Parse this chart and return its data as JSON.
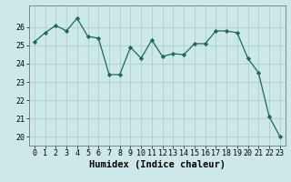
{
  "x": [
    0,
    1,
    2,
    3,
    4,
    5,
    6,
    7,
    8,
    9,
    10,
    11,
    12,
    13,
    14,
    15,
    16,
    17,
    18,
    19,
    20,
    21,
    22,
    23
  ],
  "y": [
    25.2,
    25.7,
    26.1,
    25.8,
    26.5,
    25.5,
    25.4,
    23.4,
    23.4,
    24.9,
    24.3,
    25.3,
    24.4,
    24.55,
    24.5,
    25.1,
    25.1,
    25.8,
    25.8,
    25.7,
    24.3,
    23.5,
    21.1,
    20.0
  ],
  "xlabel": "Humidex (Indice chaleur)",
  "xlim": [
    -0.5,
    23.5
  ],
  "ylim": [
    19.5,
    27.2
  ],
  "yticks": [
    20,
    21,
    22,
    23,
    24,
    25,
    26
  ],
  "xticks": [
    0,
    1,
    2,
    3,
    4,
    5,
    6,
    7,
    8,
    9,
    10,
    11,
    12,
    13,
    14,
    15,
    16,
    17,
    18,
    19,
    20,
    21,
    22,
    23
  ],
  "line_color": "#1a6b5a",
  "marker_color": "#1a6b5a",
  "bg_color": "#cce8e8",
  "grid_color": "#b0cccc",
  "label_fontsize": 7.5,
  "tick_fontsize": 6.0
}
